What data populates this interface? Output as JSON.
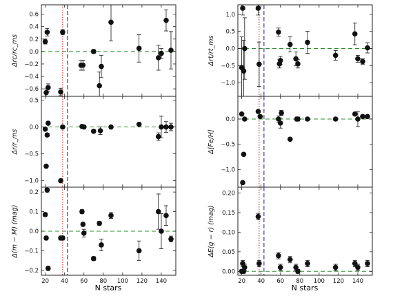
{
  "chart_data": [
    {
      "type": "scatter",
      "ylabel": "Δrc/rc_ms",
      "ylim": [
        -0.72,
        0.75
      ],
      "yticks": [
        -0.6,
        -0.4,
        -0.2,
        0.0,
        0.2,
        0.4,
        0.6
      ],
      "ytick_labels": [
        "−0.6",
        "−0.4",
        "−0.2",
        "0.0",
        "0.2",
        "0.4",
        "0.6"
      ],
      "zero_line": 0,
      "points": [
        {
          "x": 20,
          "y": 0.16,
          "err": 0.04
        },
        {
          "x": 21,
          "y": -0.66,
          "err": 0.06
        },
        {
          "x": 22,
          "y": 0.31,
          "err": 0.06
        },
        {
          "x": 23,
          "y": -0.58,
          "err": 0.06
        },
        {
          "x": 36,
          "y": -0.65,
          "err": 0.06
        },
        {
          "x": 38,
          "y": 0.31,
          "err": 0.04
        },
        {
          "x": 57,
          "y": -0.22,
          "err": 0.08
        },
        {
          "x": 59,
          "y": -0.22,
          "err": 0.08
        },
        {
          "x": 70,
          "y": 0.0,
          "err": 0.03
        },
        {
          "x": 76,
          "y": -0.55,
          "err": 0.22
        },
        {
          "x": 78,
          "y": -0.24,
          "err": 0.18
        },
        {
          "x": 88,
          "y": 0.47,
          "err": 0.3
        },
        {
          "x": 117,
          "y": 0.05,
          "err": 0.22
        },
        {
          "x": 137,
          "y": -0.1,
          "err": 0.2
        },
        {
          "x": 140,
          "y": -0.03,
          "err": 0.08
        },
        {
          "x": 145,
          "y": 0.5,
          "err": 0.17
        },
        {
          "x": 150,
          "y": 0.02,
          "err": 0.3
        }
      ]
    },
    {
      "type": "scatter",
      "ylabel": "Δrt/rt_ms",
      "ylim": [
        -1.4,
        1.28
      ],
      "yticks": [
        -1.0,
        -0.5,
        0.0,
        0.5,
        1.0
      ],
      "ytick_labels": [
        "−1.0",
        "−0.5",
        "0.0",
        "0.5",
        "1.0"
      ],
      "zero_line": 0,
      "points": [
        {
          "x": 20,
          "y": -0.56,
          "err": 0.9
        },
        {
          "x": 21,
          "y": 1.18,
          "err": 0.2
        },
        {
          "x": 22,
          "y": -0.66,
          "err": 0.9
        },
        {
          "x": 23,
          "y": 0.0,
          "err": 0.9
        },
        {
          "x": 37,
          "y": 1.18,
          "err": 0.2
        },
        {
          "x": 38,
          "y": -0.46,
          "err": 0.65
        },
        {
          "x": 58,
          "y": 0.48,
          "err": 0.12
        },
        {
          "x": 59,
          "y": -0.45,
          "err": 0.12
        },
        {
          "x": 60,
          "y": -0.35,
          "err": 0.12
        },
        {
          "x": 70,
          "y": 0.12,
          "err": 0.22
        },
        {
          "x": 76,
          "y": -0.3,
          "err": 0.2
        },
        {
          "x": 78,
          "y": -0.45,
          "err": 0.12
        },
        {
          "x": 88,
          "y": 0.18,
          "err": 0.32
        },
        {
          "x": 117,
          "y": -0.2,
          "err": 0.14
        },
        {
          "x": 137,
          "y": 0.43,
          "err": 0.32
        },
        {
          "x": 140,
          "y": -0.3,
          "err": 0.1
        },
        {
          "x": 145,
          "y": -0.38,
          "err": 0.08
        },
        {
          "x": 150,
          "y": 0.02,
          "err": 0.15
        }
      ]
    },
    {
      "type": "scatter",
      "ylabel": "Δr/r_ms",
      "ylim": [
        -1.12,
        0.57
      ],
      "yticks": [
        -1.0,
        -0.5,
        0.0,
        0.5
      ],
      "ytick_labels": [
        "−1.0",
        "−0.5",
        "0.0",
        "0.5"
      ],
      "zero_line": 0,
      "points": [
        {
          "x": 20,
          "y": -0.04,
          "err": 0.03
        },
        {
          "x": 21,
          "y": -0.73,
          "err": 0.03
        },
        {
          "x": 22,
          "y": -0.15,
          "err": 0.03
        },
        {
          "x": 23,
          "y": 0.07,
          "err": 0.03
        },
        {
          "x": 36,
          "y": -1.0,
          "err": 0.03
        },
        {
          "x": 38,
          "y": 0.0,
          "err": 0.03
        },
        {
          "x": 58,
          "y": 0.01,
          "err": 0.03
        },
        {
          "x": 60,
          "y": 0.0,
          "err": 0.03
        },
        {
          "x": 70,
          "y": -0.08,
          "err": 0.03
        },
        {
          "x": 77,
          "y": -0.07,
          "err": 0.07
        },
        {
          "x": 88,
          "y": 0.0,
          "err": 0.03
        },
        {
          "x": 117,
          "y": 0.05,
          "err": 0.03
        },
        {
          "x": 137,
          "y": -0.18,
          "err": 0.07
        },
        {
          "x": 140,
          "y": 0.0,
          "err": 0.2
        },
        {
          "x": 145,
          "y": 0.0,
          "err": 0.1
        },
        {
          "x": 150,
          "y": 0.0,
          "err": 0.07
        }
      ]
    },
    {
      "type": "scatter",
      "ylabel": "Δ[Fe/H]",
      "ylim": [
        -1.35,
        0.45
      ],
      "yticks": [
        -1.0,
        -0.5,
        0.0
      ],
      "ytick_labels": [
        "−1.0",
        "−0.5",
        "0.0"
      ],
      "zero_line": 0,
      "points": [
        {
          "x": 20,
          "y": 0.1,
          "err": 0.02
        },
        {
          "x": 21,
          "y": -1.26,
          "err": 0.02
        },
        {
          "x": 22,
          "y": -0.7,
          "err": 0.02
        },
        {
          "x": 23,
          "y": 0.0,
          "err": 0.02
        },
        {
          "x": 37,
          "y": 0.15,
          "err": 0.02
        },
        {
          "x": 39,
          "y": 0.05,
          "err": 0.02
        },
        {
          "x": 58,
          "y": 0.0,
          "err": 0.06
        },
        {
          "x": 60,
          "y": -0.08,
          "err": 0.1
        },
        {
          "x": 61,
          "y": 0.12,
          "err": 0.05
        },
        {
          "x": 70,
          "y": -0.4,
          "err": 0.02
        },
        {
          "x": 77,
          "y": 0.0,
          "err": 0.04
        },
        {
          "x": 78,
          "y": 0.0,
          "err": 0.04
        },
        {
          "x": 88,
          "y": 0.0,
          "err": 0.02
        },
        {
          "x": 117,
          "y": 0.0,
          "err": 0.03
        },
        {
          "x": 137,
          "y": 0.1,
          "err": 0.02
        },
        {
          "x": 140,
          "y": 0.0,
          "err": 0.15
        },
        {
          "x": 145,
          "y": 0.05,
          "err": 0.02
        },
        {
          "x": 150,
          "y": 0.05,
          "err": 0.02
        }
      ]
    },
    {
      "type": "scatter",
      "ylabel": "Δ(m − M) (mag)",
      "ylim": [
        -0.225,
        0.225
      ],
      "yticks": [
        -0.2,
        -0.1,
        0.0,
        0.1,
        0.2
      ],
      "ytick_labels": [
        "−0.2",
        "−0.1",
        "0.0",
        "0.1",
        "0.2"
      ],
      "zero_line": 0,
      "points": [
        {
          "x": 20,
          "y": 0.085,
          "err": 0.01
        },
        {
          "x": 21,
          "y": -0.035,
          "err": 0.01
        },
        {
          "x": 22,
          "y": 0.21,
          "err": 0.01
        },
        {
          "x": 23,
          "y": -0.19,
          "err": 0.01
        },
        {
          "x": 36,
          "y": -0.035,
          "err": 0.01
        },
        {
          "x": 38,
          "y": -0.035,
          "err": 0.01
        },
        {
          "x": 58,
          "y": 0.1,
          "err": 0.01
        },
        {
          "x": 59,
          "y": 0.035,
          "err": 0.01
        },
        {
          "x": 60,
          "y": -0.01,
          "err": 0.02
        },
        {
          "x": 70,
          "y": -0.14,
          "err": 0.01
        },
        {
          "x": 76,
          "y": 0.04,
          "err": 0.01
        },
        {
          "x": 78,
          "y": -0.07,
          "err": 0.03
        },
        {
          "x": 88,
          "y": 0.08,
          "err": 0.015
        },
        {
          "x": 117,
          "y": -0.1,
          "err": 0.05
        },
        {
          "x": 137,
          "y": 0.1,
          "err": 0.09
        },
        {
          "x": 140,
          "y": 0.0,
          "err": 0.09
        },
        {
          "x": 145,
          "y": 0.08,
          "err": 0.05
        },
        {
          "x": 150,
          "y": -0.04,
          "err": 0.015
        }
      ]
    },
    {
      "type": "scatter",
      "ylabel": "ΔE(g − r) (mag)",
      "ylim": [
        -0.01,
        0.215
      ],
      "yticks": [
        0.0,
        0.05,
        0.1,
        0.15,
        0.2
      ],
      "ytick_labels": [
        "0.00",
        "0.05",
        "0.10",
        "0.15",
        "0.20"
      ],
      "zero_line": 0,
      "points": [
        {
          "x": 20,
          "y": 0.0,
          "err": 0.005
        },
        {
          "x": 21,
          "y": 0.02,
          "err": 0.008
        },
        {
          "x": 22,
          "y": 0.0,
          "err": 0.005
        },
        {
          "x": 23,
          "y": 0.01,
          "err": 0.008
        },
        {
          "x": 37,
          "y": 0.14,
          "err": 0.008
        },
        {
          "x": 38,
          "y": 0.02,
          "err": 0.008
        },
        {
          "x": 58,
          "y": 0.04,
          "err": 0.008
        },
        {
          "x": 60,
          "y": 0.01,
          "err": 0.008
        },
        {
          "x": 70,
          "y": 0.03,
          "err": 0.008
        },
        {
          "x": 76,
          "y": 0.01,
          "err": 0.008
        },
        {
          "x": 78,
          "y": 0.0,
          "err": 0.005
        },
        {
          "x": 88,
          "y": 0.02,
          "err": 0.008
        },
        {
          "x": 117,
          "y": 0.01,
          "err": 0.008
        },
        {
          "x": 137,
          "y": 0.02,
          "err": 0.008
        },
        {
          "x": 140,
          "y": 0.01,
          "err": 0.008
        },
        {
          "x": 150,
          "y": 0.02,
          "err": 0.008
        }
      ]
    }
  ],
  "shared": {
    "xlabel": "N stars",
    "xlim": [
      16,
      155
    ],
    "xticks": [
      20,
      40,
      60,
      80,
      100,
      120,
      140
    ],
    "xtick_labels": [
      "20",
      "40",
      "60",
      "80",
      "100",
      "120",
      "140"
    ],
    "vline_red": 38,
    "vline_blue": 43
  },
  "colors": {
    "points": "#111111",
    "zero_line": "#2e8b2e",
    "vline_red": "#c0201a",
    "vline_blue": "#1a1a8c",
    "axis": "#222222"
  }
}
